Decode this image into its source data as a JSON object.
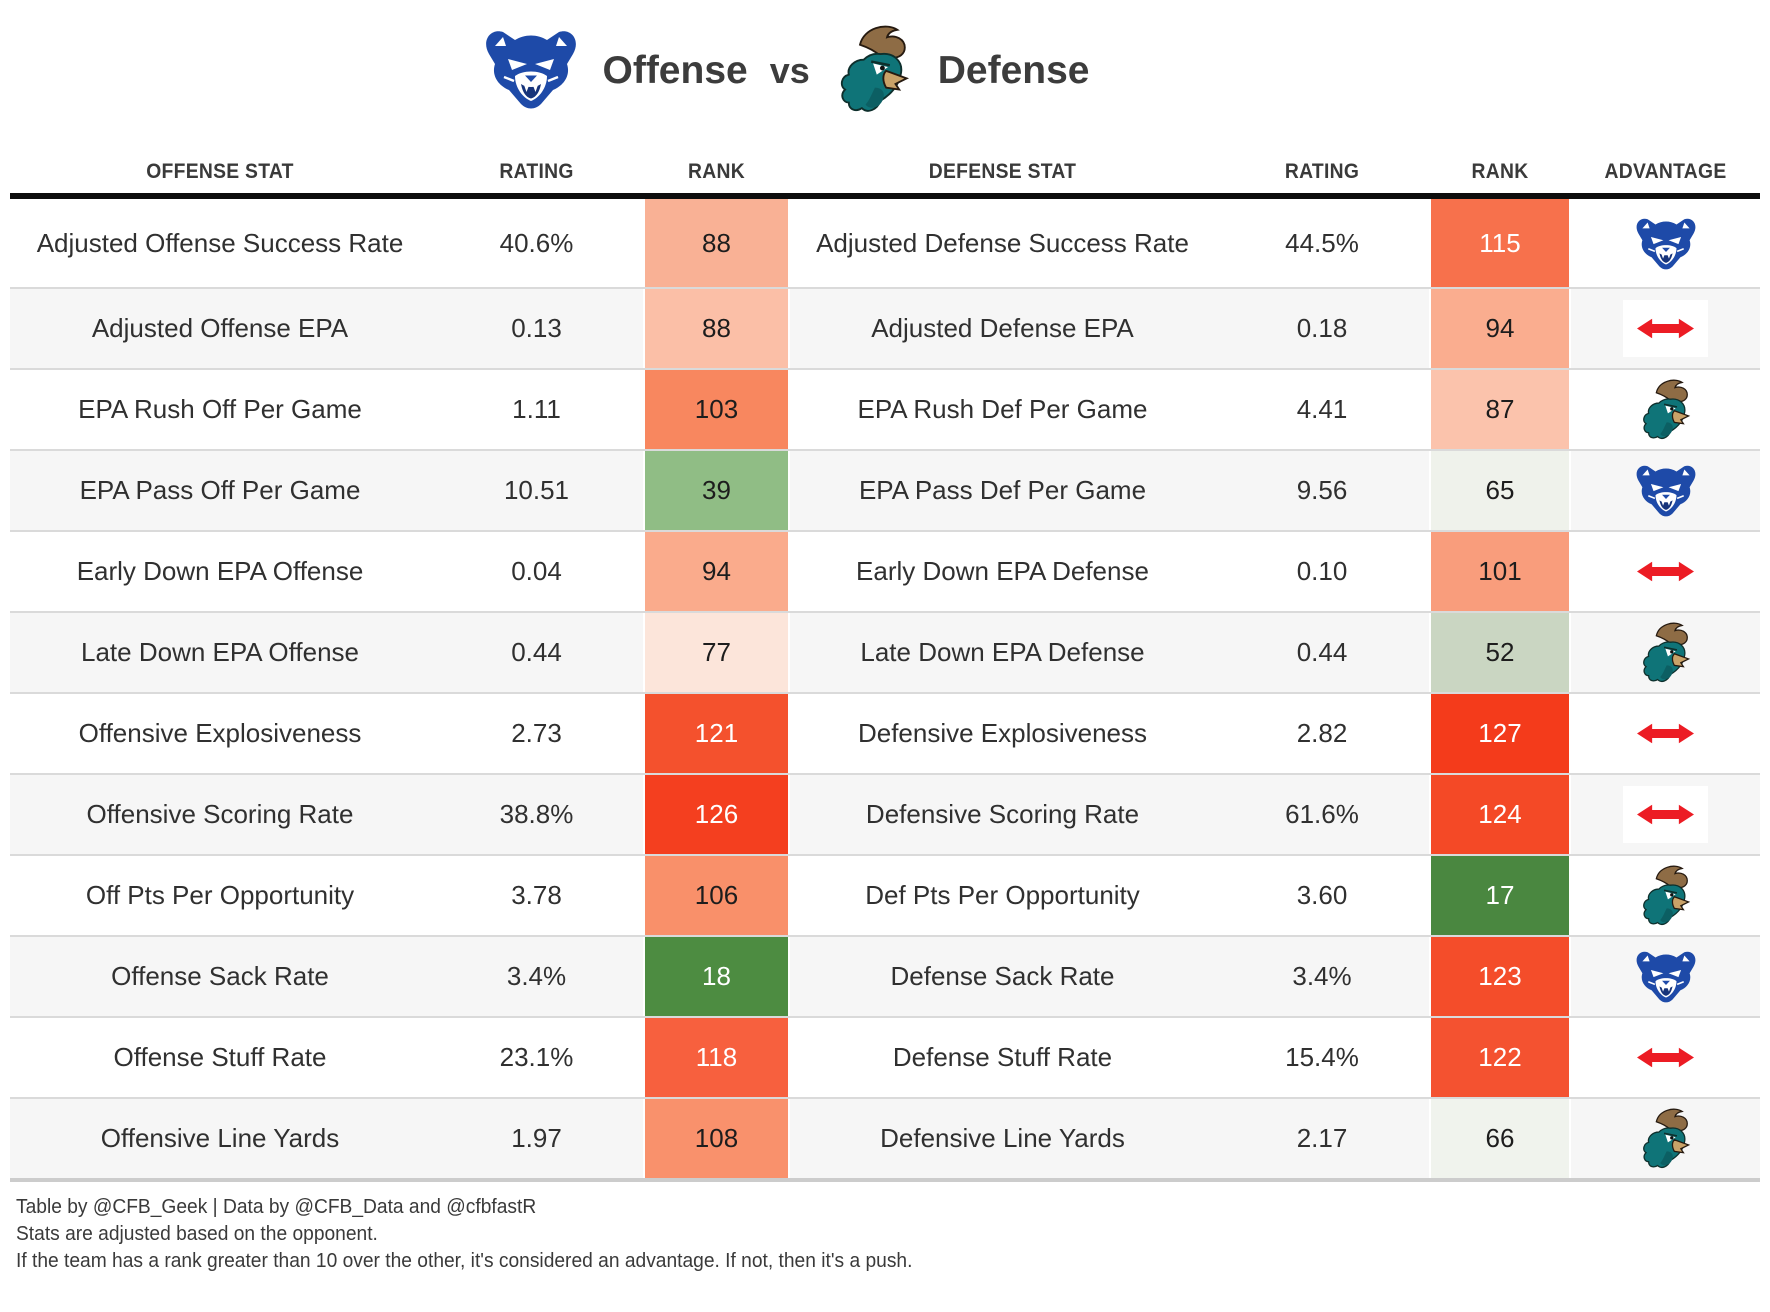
{
  "title": {
    "offense_label": "Offense",
    "vs_label": "vs",
    "defense_label": "Defense",
    "offense_team": "Georgia State Panthers",
    "defense_team": "Coastal Carolina Chanticleers"
  },
  "columns": {
    "offense_stat": "Offense Stat",
    "offense_rating": "Rating",
    "offense_rank": "Rank",
    "defense_stat": "Defense Stat",
    "defense_rating": "Rating",
    "defense_rank": "Rank",
    "advantage": "Advantage"
  },
  "rows": [
    {
      "offense_stat": "Adjusted Offense Success Rate",
      "offense_rating": "40.6%",
      "offense_rank": "88",
      "offense_rank_bg": "#f9b195",
      "offense_rank_fg": "#1d1d1d",
      "defense_stat": "Adjusted Defense Success Rate",
      "defense_rating": "44.5%",
      "defense_rank": "115",
      "defense_rank_bg": "#f7714c",
      "defense_rank_fg": "#ffffff",
      "advantage": "offense"
    },
    {
      "offense_stat": "Adjusted Offense EPA",
      "offense_rating": "0.13",
      "offense_rank": "88",
      "offense_rank_bg": "#fbbfa7",
      "offense_rank_fg": "#1d1d1d",
      "defense_stat": "Adjusted Defense EPA",
      "defense_rating": "0.18",
      "defense_rank": "94",
      "defense_rank_bg": "#faad8f",
      "defense_rank_fg": "#1d1d1d",
      "advantage": "push"
    },
    {
      "offense_stat": "EPA Rush Off Per Game",
      "offense_rating": "1.11",
      "offense_rank": "103",
      "offense_rank_bg": "#f8875f",
      "offense_rank_fg": "#1d1d1d",
      "defense_stat": "EPA Rush Def Per Game",
      "defense_rating": "4.41",
      "defense_rank": "87",
      "defense_rank_bg": "#fbc3ac",
      "defense_rank_fg": "#1d1d1d",
      "advantage": "defense"
    },
    {
      "offense_stat": "EPA Pass Off Per Game",
      "offense_rating": "10.51",
      "offense_rank": "39",
      "offense_rank_bg": "#90bd85",
      "offense_rank_fg": "#1d1d1d",
      "defense_stat": "EPA Pass Def Per Game",
      "defense_rating": "9.56",
      "defense_rank": "65",
      "defense_rank_bg": "#eff2eb",
      "defense_rank_fg": "#1d1d1d",
      "advantage": "offense"
    },
    {
      "offense_stat": "Early Down EPA Offense",
      "offense_rating": "0.04",
      "offense_rank": "94",
      "offense_rank_bg": "#faab8c",
      "offense_rank_fg": "#1d1d1d",
      "defense_stat": "Early Down EPA Defense",
      "defense_rating": "0.10",
      "defense_rank": "101",
      "defense_rank_bg": "#f99d7c",
      "defense_rank_fg": "#1d1d1d",
      "advantage": "push"
    },
    {
      "offense_stat": "Late Down EPA Offense",
      "offense_rating": "0.44",
      "offense_rank": "77",
      "offense_rank_bg": "#fce5da",
      "offense_rank_fg": "#1d1d1d",
      "defense_stat": "Late Down EPA Defense",
      "defense_rating": "0.44",
      "defense_rank": "52",
      "defense_rank_bg": "#cad6c2",
      "defense_rank_fg": "#1d1d1d",
      "advantage": "defense"
    },
    {
      "offense_stat": "Offensive Explosiveness",
      "offense_rating": "2.73",
      "offense_rank": "121",
      "offense_rank_bg": "#f4512d",
      "offense_rank_fg": "#ffffff",
      "defense_stat": "Defensive Explosiveness",
      "defense_rating": "2.82",
      "defense_rank": "127",
      "defense_rank_bg": "#f43b1b",
      "defense_rank_fg": "#ffffff",
      "advantage": "push"
    },
    {
      "offense_stat": "Offensive Scoring Rate",
      "offense_rating": "38.8%",
      "offense_rank": "126",
      "offense_rank_bg": "#f43f1f",
      "offense_rank_fg": "#ffffff",
      "defense_stat": "Defensive Scoring Rate",
      "defense_rating": "61.6%",
      "defense_rank": "124",
      "defense_rank_bg": "#f44926",
      "defense_rank_fg": "#ffffff",
      "advantage": "push"
    },
    {
      "offense_stat": "Off Pts Per Opportunity",
      "offense_rating": "3.78",
      "offense_rank": "106",
      "offense_rank_bg": "#f9906a",
      "offense_rank_fg": "#1d1d1d",
      "defense_stat": "Def Pts Per Opportunity",
      "defense_rating": "3.60",
      "defense_rank": "17",
      "defense_rank_bg": "#4a8740",
      "defense_rank_fg": "#ffffff",
      "advantage": "defense"
    },
    {
      "offense_stat": "Offense Sack Rate",
      "offense_rating": "3.4%",
      "offense_rank": "18",
      "offense_rank_bg": "#4d8c41",
      "offense_rank_fg": "#ffffff",
      "defense_stat": "Defense Sack Rate",
      "defense_rating": "3.4%",
      "defense_rank": "123",
      "defense_rank_bg": "#f44d2a",
      "defense_rank_fg": "#ffffff",
      "advantage": "offense"
    },
    {
      "offense_stat": "Offense Stuff Rate",
      "offense_rating": "23.1%",
      "offense_rank": "118",
      "offense_rank_bg": "#f7603e",
      "offense_rank_fg": "#ffffff",
      "defense_stat": "Defense Stuff Rate",
      "defense_rating": "15.4%",
      "defense_rank": "122",
      "defense_rank_bg": "#f45230",
      "defense_rank_fg": "#ffffff",
      "advantage": "push"
    },
    {
      "offense_stat": "Offensive Line Yards",
      "offense_rating": "1.97",
      "offense_rank": "108",
      "offense_rank_bg": "#f9916c",
      "offense_rank_fg": "#1d1d1d",
      "defense_stat": "Defensive Line Yards",
      "defense_rating": "2.17",
      "defense_rank": "66",
      "defense_rank_bg": "#f0f3ed",
      "defense_rank_fg": "#1d1d1d",
      "advantage": "defense"
    }
  ],
  "footer": {
    "line1": "Table by @CFB_Geek | Data by @CFB_Data and @cfbfastR",
    "line2": "Stats are adjusted based on the opponent.",
    "line3": "If the team has a rank greater than 10 over the other, it's considered an advantage. If not, then it's a push."
  },
  "colors": {
    "offense_team_blue": "#1e4aa8",
    "defense_team_teal": "#0f7478",
    "defense_team_brown": "#8e6c45",
    "push_arrow_red": "#ec1c24",
    "rank_good_green": "#4a8740",
    "rank_bad_red": "#f43b1b",
    "header_rule_black": "#0d0d0d",
    "row_stripe_gray": "#f6f6f6"
  }
}
